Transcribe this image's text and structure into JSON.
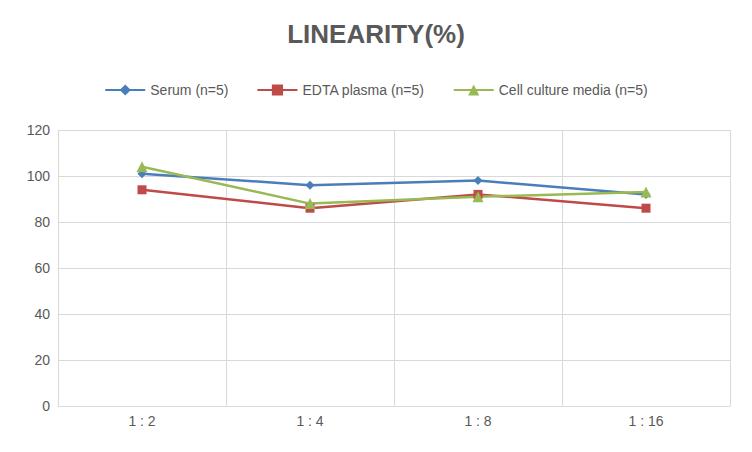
{
  "chart_data": {
    "type": "line",
    "title": "LINEARITY(%)",
    "categories": [
      "1 : 2",
      "1 : 4",
      "1 : 8",
      "1 : 16"
    ],
    "series": [
      {
        "name": "Serum (n=5)",
        "color": "#4a7ebb",
        "marker": "diamond",
        "values": [
          101,
          96,
          98,
          92
        ]
      },
      {
        "name": "EDTA plasma (n=5)",
        "color": "#be4b48",
        "marker": "square",
        "values": [
          94,
          86,
          92,
          86
        ]
      },
      {
        "name": "Cell culture media (n=5)",
        "color": "#98b954",
        "marker": "triangle",
        "values": [
          104,
          88,
          91,
          93
        ]
      }
    ],
    "ylim": [
      0,
      120
    ],
    "yticks": [
      0,
      20,
      40,
      60,
      80,
      100,
      120
    ],
    "grid": true,
    "legend": "top"
  }
}
